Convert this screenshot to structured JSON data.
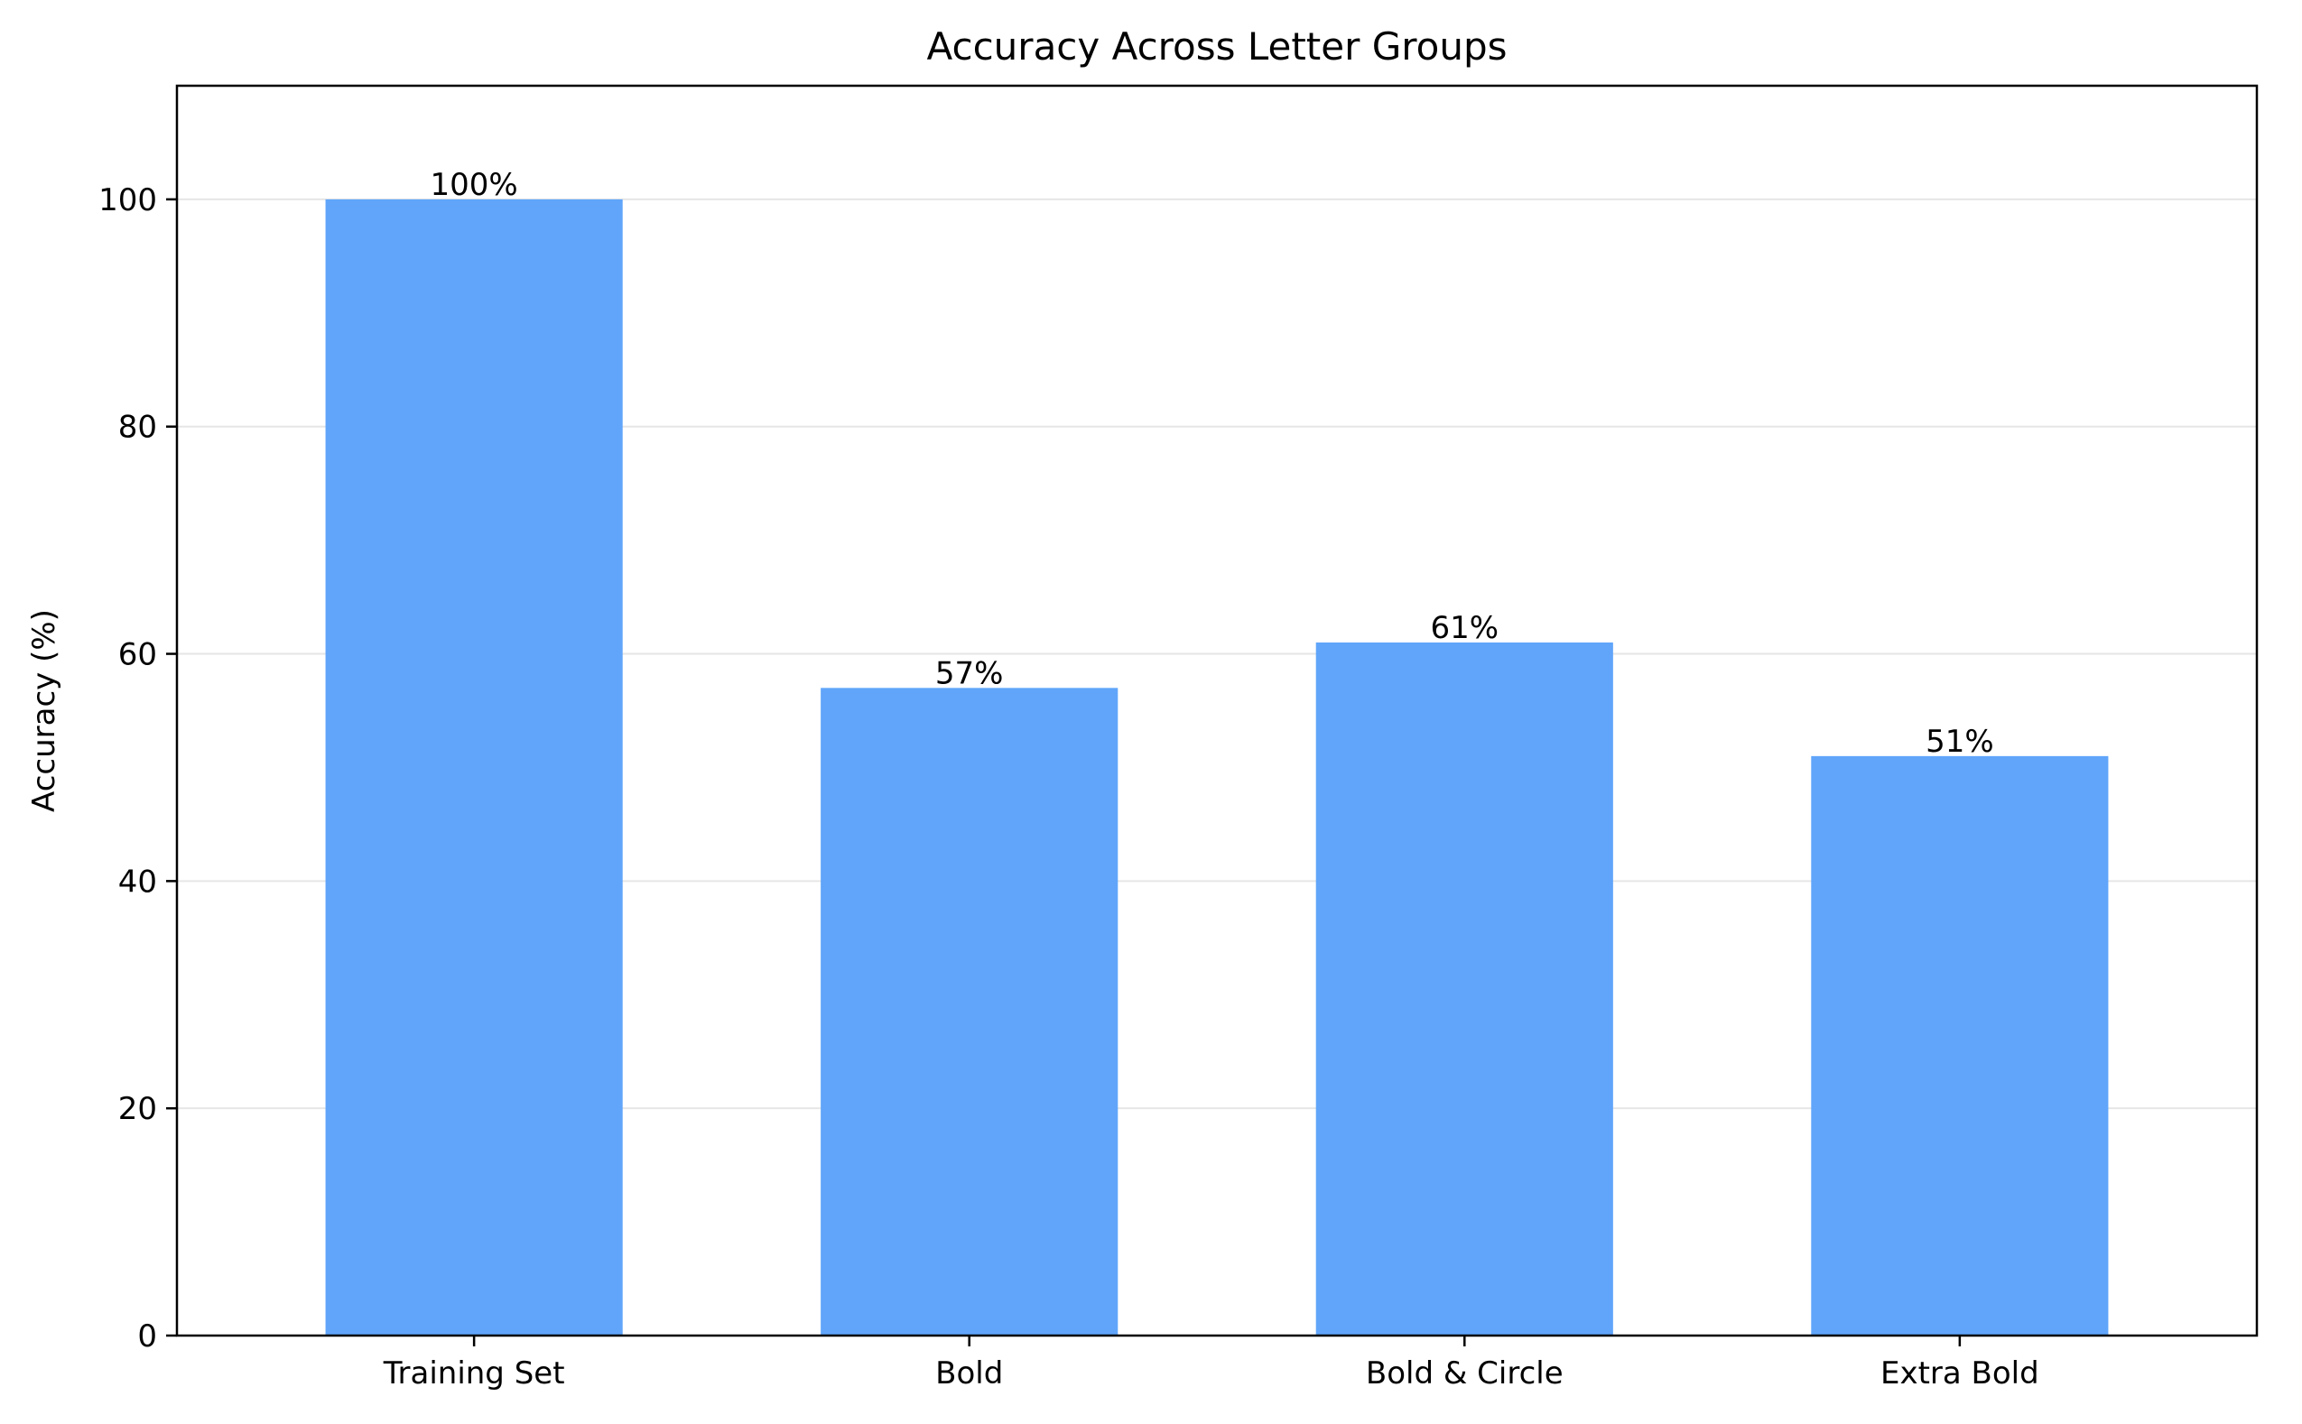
{
  "chart_data": {
    "type": "bar",
    "title": "Accuracy Across Letter Groups",
    "xlabel": "",
    "ylabel": "Accuracy (%)",
    "categories": [
      "Training Set",
      "Bold",
      "Bold & Circle",
      "Extra Bold"
    ],
    "values": [
      100,
      57,
      61,
      51
    ],
    "data_labels": [
      "100%",
      "57%",
      "61%",
      "51%"
    ],
    "ylim": [
      0,
      110
    ],
    "yticks": [
      0,
      20,
      40,
      60,
      80,
      100
    ],
    "grid": "y-axis only",
    "legend": "none",
    "colors": {
      "bar": "#60a5fa",
      "grid": "#e6e6e6",
      "axis": "#000000"
    }
  }
}
